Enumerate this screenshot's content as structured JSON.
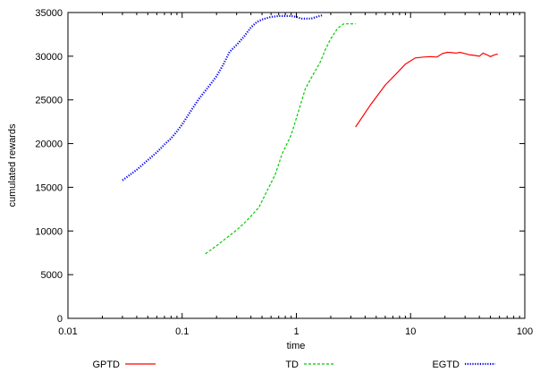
{
  "chart_data": {
    "type": "line",
    "title": "",
    "xlabel": "time",
    "ylabel": "cumulated rewards",
    "xscale": "log",
    "xlim": [
      0.01,
      100
    ],
    "ylim": [
      0,
      35000
    ],
    "xticks": [
      {
        "value": 0.01,
        "label": "0.01"
      },
      {
        "value": 0.1,
        "label": "0.1"
      },
      {
        "value": 1,
        "label": "1"
      },
      {
        "value": 10,
        "label": "10"
      },
      {
        "value": 100,
        "label": "100"
      }
    ],
    "yticks": [
      {
        "value": 0,
        "label": "0"
      },
      {
        "value": 5000,
        "label": "5000"
      },
      {
        "value": 10000,
        "label": "10000"
      },
      {
        "value": 15000,
        "label": "15000"
      },
      {
        "value": 20000,
        "label": "20000"
      },
      {
        "value": 25000,
        "label": "25000"
      },
      {
        "value": 30000,
        "label": "30000"
      },
      {
        "value": 35000,
        "label": "35000"
      }
    ],
    "grid": false,
    "legend_position": "bottom",
    "series": [
      {
        "name": "GPTD",
        "color": "#ff0000",
        "dash": "solid",
        "x": [
          3.3,
          4.5,
          6.0,
          7.5,
          9.0,
          11,
          13,
          15,
          17,
          19,
          21,
          23,
          25,
          27,
          30,
          33,
          36,
          40,
          43,
          46,
          50,
          54,
          58
        ],
        "y": [
          21900,
          24500,
          26700,
          28000,
          29100,
          29800,
          29900,
          29950,
          29900,
          30300,
          30450,
          30400,
          30350,
          30450,
          30300,
          30150,
          30100,
          30000,
          30350,
          30200,
          29950,
          30150,
          30250
        ]
      },
      {
        "name": "TD",
        "color": "#00cc00",
        "dash": "dashed",
        "x": [
          0.16,
          0.2,
          0.25,
          0.3,
          0.35,
          0.4,
          0.47,
          0.55,
          0.65,
          0.75,
          0.9,
          1.05,
          1.2,
          1.4,
          1.6,
          1.8,
          2.0,
          2.3,
          2.6,
          2.9,
          3.3
        ],
        "y": [
          7400,
          8300,
          9300,
          10100,
          10900,
          11700,
          12700,
          14500,
          16400,
          18800,
          21000,
          23800,
          26300,
          27900,
          29200,
          30800,
          32000,
          33200,
          33700,
          33700,
          33700
        ]
      },
      {
        "name": "EGTD",
        "color": "#0000ee",
        "dash": "dotted",
        "x": [
          0.03,
          0.04,
          0.05,
          0.06,
          0.07,
          0.08,
          0.09,
          0.1,
          0.12,
          0.14,
          0.17,
          0.2,
          0.23,
          0.26,
          0.3,
          0.35,
          0.4,
          0.45,
          0.5,
          0.6,
          0.7,
          0.8,
          0.9,
          1.0,
          1.1,
          1.2,
          1.35,
          1.5,
          1.7
        ],
        "y": [
          15800,
          17000,
          18100,
          19000,
          19900,
          20600,
          21400,
          22200,
          23800,
          25100,
          26500,
          27700,
          29100,
          30500,
          31300,
          32300,
          33300,
          33900,
          34200,
          34500,
          34600,
          34600,
          34600,
          34500,
          34300,
          34300,
          34300,
          34500,
          34700
        ]
      }
    ]
  }
}
